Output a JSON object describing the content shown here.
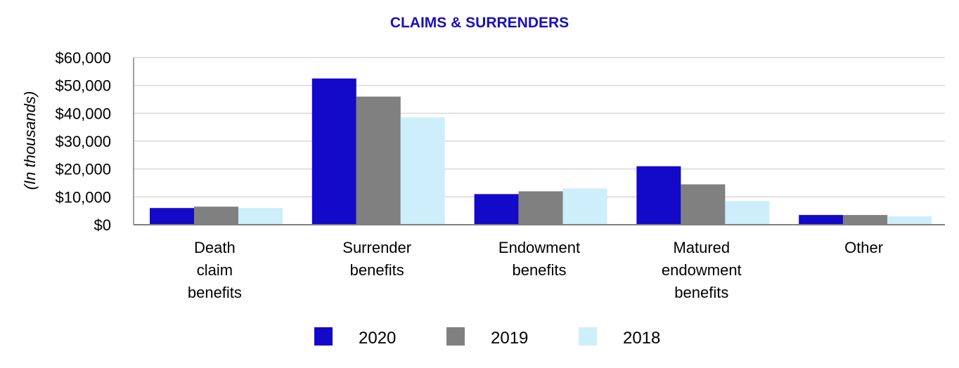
{
  "chart_data": {
    "type": "bar",
    "title": "CLAIMS & SURRENDERS",
    "xlabel": "",
    "ylabel": "(In thousands)",
    "ylim": [
      0,
      60000
    ],
    "y_ticks": [
      {
        "value": 0,
        "label": "$0"
      },
      {
        "value": 10000,
        "label": "$10,000"
      },
      {
        "value": 20000,
        "label": "$20,000"
      },
      {
        "value": 30000,
        "label": "$30,000"
      },
      {
        "value": 40000,
        "label": "$40,000"
      },
      {
        "value": 50000,
        "label": "$50,000"
      },
      {
        "value": 60000,
        "label": "$60,000"
      }
    ],
    "grid": true,
    "legend_position": "bottom",
    "categories": [
      [
        "Death",
        "claim",
        "benefits"
      ],
      [
        "Surrender",
        "benefits"
      ],
      [
        "Endowment",
        "benefits"
      ],
      [
        "Matured",
        "endowment",
        "benefits"
      ],
      [
        "Other"
      ]
    ],
    "series": [
      {
        "name": "2020",
        "color": "#1309c8",
        "values": [
          6000,
          52500,
          11000,
          21000,
          3500
        ]
      },
      {
        "name": "2019",
        "color": "#808080",
        "values": [
          6500,
          46000,
          12000,
          14500,
          3500
        ]
      },
      {
        "name": "2018",
        "color": "#cdeefb",
        "values": [
          6000,
          38500,
          13000,
          8500,
          3000
        ]
      }
    ],
    "colors": {
      "title": "#1a0fbf",
      "grid": "#d9d9d9",
      "axis": "#808080"
    }
  }
}
